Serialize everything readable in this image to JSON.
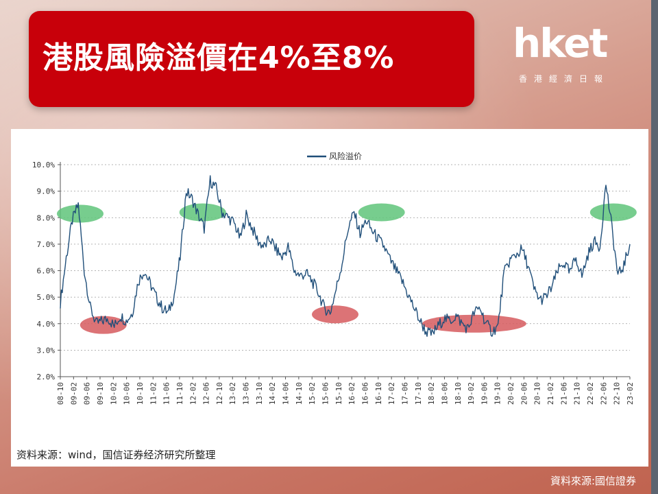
{
  "header": {
    "title": "港股風險溢價在4%至8%",
    "title_bg": "#c8000a"
  },
  "logo": {
    "mark": "hket",
    "subtitle": "香港經濟日報"
  },
  "chart_data": {
    "type": "line",
    "legend": "风险溢价",
    "legend_position": "top-center",
    "y_ticks": [
      "10.0%",
      "9.0%",
      "8.0%",
      "7.0%",
      "6.0%",
      "5.0%",
      "4.0%",
      "3.0%",
      "2.0%"
    ],
    "ylim": [
      2.0,
      10.0
    ],
    "x_ticks": [
      "08-10",
      "09-02",
      "09-06",
      "09-10",
      "10-02",
      "10-06",
      "10-10",
      "11-02",
      "11-06",
      "11-10",
      "12-02",
      "12-06",
      "12-10",
      "13-02",
      "13-06",
      "13-10",
      "14-02",
      "14-06",
      "14-10",
      "15-02",
      "15-06",
      "15-10",
      "16-02",
      "16-06",
      "16-10",
      "17-02",
      "17-06",
      "17-10",
      "18-02",
      "18-06",
      "18-10",
      "19-02",
      "19-06",
      "19-10",
      "20-02",
      "20-06",
      "20-10",
      "21-02",
      "21-06",
      "21-10",
      "22-02",
      "22-06",
      "22-10",
      "23-02"
    ],
    "line_color": "#1f4e79",
    "series": [
      {
        "name": "风险溢价",
        "values": [
          4.8,
          6.5,
          7.9,
          8.5,
          6.0,
          4.6,
          4.0,
          4.1,
          4.2,
          3.9,
          4.3,
          4.1,
          4.4,
          5.6,
          6.0,
          5.5,
          5.0,
          4.6,
          4.4,
          5.1,
          6.5,
          9.0,
          8.7,
          8.1,
          7.6,
          9.4,
          9.1,
          8.2,
          8.0,
          7.8,
          7.2,
          8.1,
          7.6,
          7.1,
          6.9,
          7.2,
          6.8,
          6.5,
          6.9,
          6.0,
          5.8,
          5.9,
          5.6,
          5.2,
          4.6,
          4.4,
          5.3,
          6.3,
          7.6,
          8.2,
          7.4,
          7.9,
          7.5,
          7.2,
          6.9,
          6.4,
          6.0,
          5.6,
          5.1,
          4.6,
          4.1,
          3.7,
          3.6,
          3.9,
          4.2,
          4.1,
          4.3,
          4.0,
          3.8,
          4.4,
          4.6,
          4.0,
          3.7,
          3.9,
          5.9,
          6.4,
          6.6,
          6.8,
          6.2,
          5.3,
          4.9,
          5.0,
          5.4,
          6.0,
          6.3,
          5.9,
          6.5,
          5.8,
          6.6,
          7.1,
          6.9,
          9.3,
          7.6,
          5.8,
          6.2,
          7.0
        ]
      }
    ],
    "highlights": [
      {
        "x": 1.5,
        "y": 8.15,
        "color": "#5fc47a"
      },
      {
        "x": 3.25,
        "y": 3.95,
        "color": "#d65a5e"
      },
      {
        "x": 10.75,
        "y": 8.2,
        "color": "#5fc47a"
      },
      {
        "x": 20.75,
        "y": 4.35,
        "color": "#d65a5e"
      },
      {
        "x": 24.25,
        "y": 8.2,
        "color": "#5fc47a"
      },
      {
        "x": 31.25,
        "y": 4.0,
        "color": "#d65a5e"
      },
      {
        "x": 41.75,
        "y": 8.2,
        "color": "#5fc47a"
      }
    ]
  },
  "source_note": "资料来源：wind，国信证券经济研究所整理",
  "credit": "資料來源:國信證券"
}
